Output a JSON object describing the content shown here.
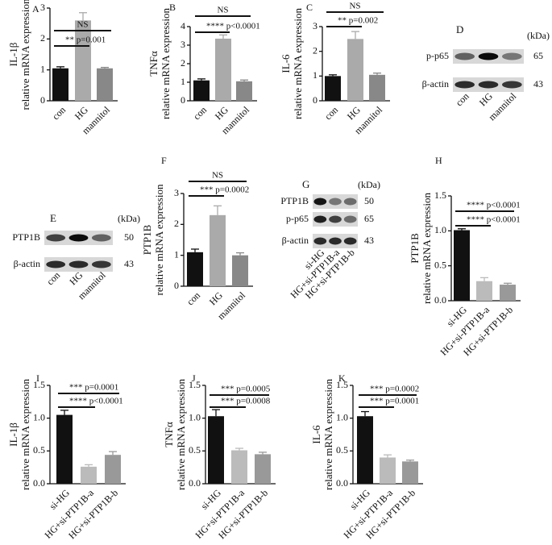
{
  "chart_data": [
    {
      "type": "bar",
      "panel": "A",
      "ylabel": [
        "IL-1β",
        "relative mRNA expression"
      ],
      "categories": [
        "con",
        "HG",
        "mannitol"
      ],
      "values": [
        1.05,
        2.6,
        1.05
      ],
      "errors": [
        0.05,
        0.25,
        0.03
      ],
      "colors": [
        "#111111",
        "#aaaaaa",
        "#888888"
      ],
      "ylim": [
        0,
        3
      ],
      "yticks": [
        0,
        1,
        2,
        3
      ],
      "annotations": [
        "NS",
        "** p=0.001"
      ]
    },
    {
      "type": "bar",
      "panel": "B",
      "ylabel": [
        "TNFα",
        "relative mRNA expression"
      ],
      "categories": [
        "con",
        "HG",
        "mannitol"
      ],
      "values": [
        1.1,
        3.35,
        1.05
      ],
      "errors": [
        0.08,
        0.2,
        0.07
      ],
      "colors": [
        "#111111",
        "#aaaaaa",
        "#888888"
      ],
      "ylim": [
        0,
        4
      ],
      "yticks": [
        0,
        1,
        2,
        3,
        4
      ],
      "annotations": [
        "NS",
        "**** p<0.0001"
      ]
    },
    {
      "type": "bar",
      "panel": "C",
      "ylabel": [
        "IL-6",
        "relative mRNA expression"
      ],
      "categories": [
        "con",
        "HG",
        "mannitol"
      ],
      "values": [
        1.0,
        2.5,
        1.05
      ],
      "errors": [
        0.05,
        0.3,
        0.07
      ],
      "colors": [
        "#111111",
        "#aaaaaa",
        "#888888"
      ],
      "ylim": [
        0,
        3
      ],
      "yticks": [
        0,
        1,
        2,
        3
      ],
      "annotations": [
        "NS",
        "** p=0.002"
      ]
    },
    {
      "type": "bar",
      "panel": "F",
      "ylabel": [
        "PTP1B",
        "relative mRNA expression"
      ],
      "categories": [
        "con",
        "HG",
        "mannitol"
      ],
      "values": [
        1.1,
        2.3,
        1.0
      ],
      "errors": [
        0.1,
        0.3,
        0.08
      ],
      "colors": [
        "#111111",
        "#aaaaaa",
        "#888888"
      ],
      "ylim": [
        0,
        3
      ],
      "yticks": [
        0,
        1,
        2,
        3
      ],
      "annotations": [
        "NS",
        "*** p=0.0002"
      ]
    },
    {
      "type": "bar",
      "panel": "H",
      "ylabel": [
        "PTP1B",
        "relative mRNA expression"
      ],
      "categories": [
        "si-HG",
        "HG+si-PTP1B-a",
        "HG+si-PTP1B-b"
      ],
      "values": [
        1.01,
        0.28,
        0.23
      ],
      "errors": [
        0.02,
        0.05,
        0.02
      ],
      "colors": [
        "#111111",
        "#bbbbbb",
        "#999999"
      ],
      "ylim": [
        0,
        1.5
      ],
      "yticks": [
        {
          "value": 0,
          "label": "0.0"
        },
        0.5,
        {
          "value": 1,
          "label": "1.0"
        },
        1.5
      ],
      "annotations": [
        "**** p<0.0001",
        "**** p<0.0001"
      ]
    },
    {
      "type": "bar",
      "panel": "I",
      "ylabel": [
        "IL-1β",
        "relative mRNA expression"
      ],
      "categories": [
        "si-HG",
        "HG+si-PTP1B-a",
        "HG+si-PTP1B-b"
      ],
      "values": [
        1.05,
        0.26,
        0.44
      ],
      "errors": [
        0.07,
        0.03,
        0.05
      ],
      "colors": [
        "#111111",
        "#bbbbbb",
        "#999999"
      ],
      "ylim": [
        0,
        1.5
      ],
      "yticks": [
        {
          "value": 0,
          "label": "0.0"
        },
        0.5,
        {
          "value": 1,
          "label": "1.0"
        },
        1.5
      ],
      "annotations": [
        "*** p=0.0001",
        "**** p<0.0001"
      ]
    },
    {
      "type": "bar",
      "panel": "J",
      "ylabel": [
        "TNFα",
        "relative mRNA expression"
      ],
      "categories": [
        "si-HG",
        "HG+si-PTP1B-a",
        "HG+si-PTP1B-b"
      ],
      "values": [
        1.03,
        0.51,
        0.45
      ],
      "errors": [
        0.1,
        0.03,
        0.03
      ],
      "colors": [
        "#111111",
        "#bbbbbb",
        "#999999"
      ],
      "ylim": [
        0,
        1.5
      ],
      "yticks": [
        {
          "value": 0,
          "label": "0.0"
        },
        0.5,
        {
          "value": 1,
          "label": "1.0"
        },
        1.5
      ],
      "annotations": [
        "*** p=0.0005",
        "*** p=0.0008"
      ]
    },
    {
      "type": "bar",
      "panel": "K",
      "ylabel": [
        "IL-6",
        "relative mRNA expression"
      ],
      "categories": [
        "si-HG",
        "HG+si-PTP1B-a",
        "HG+si-PTP1B-b"
      ],
      "values": [
        1.03,
        0.4,
        0.34
      ],
      "errors": [
        0.07,
        0.04,
        0.02
      ],
      "colors": [
        "#111111",
        "#bbbbbb",
        "#999999"
      ],
      "ylim": [
        0,
        1.5
      ],
      "yticks": [
        {
          "value": 0,
          "label": "0.0"
        },
        0.5,
        {
          "value": 1,
          "label": "1.0"
        },
        1.5
      ],
      "annotations": [
        "*** p=0.0002",
        "*** p=0.0001"
      ]
    }
  ],
  "blots": [
    {
      "panel": "D",
      "unit": "(kDa)",
      "rows": [
        {
          "protein": "p-p65",
          "kda": "65"
        },
        {
          "protein": "β-actin",
          "kda": "43"
        }
      ],
      "lanes": [
        "con",
        "HG",
        "mannitol"
      ]
    },
    {
      "panel": "E",
      "unit": "(kDa)",
      "rows": [
        {
          "protein": "PTP1B",
          "kda": "50"
        },
        {
          "protein": "β-actin",
          "kda": "43"
        }
      ],
      "lanes": [
        "con",
        "HG",
        "mannitol"
      ]
    },
    {
      "panel": "G",
      "unit": "(kDa)",
      "rows": [
        {
          "protein": "PTP1B",
          "kda": "50"
        },
        {
          "protein": "p-p65",
          "kda": "65"
        },
        {
          "protein": "β-actin",
          "kda": "43"
        }
      ],
      "lanes": [
        "si-HG",
        "HG+si-PTP1B-a",
        "HG+si-PTP1B-b"
      ]
    }
  ]
}
